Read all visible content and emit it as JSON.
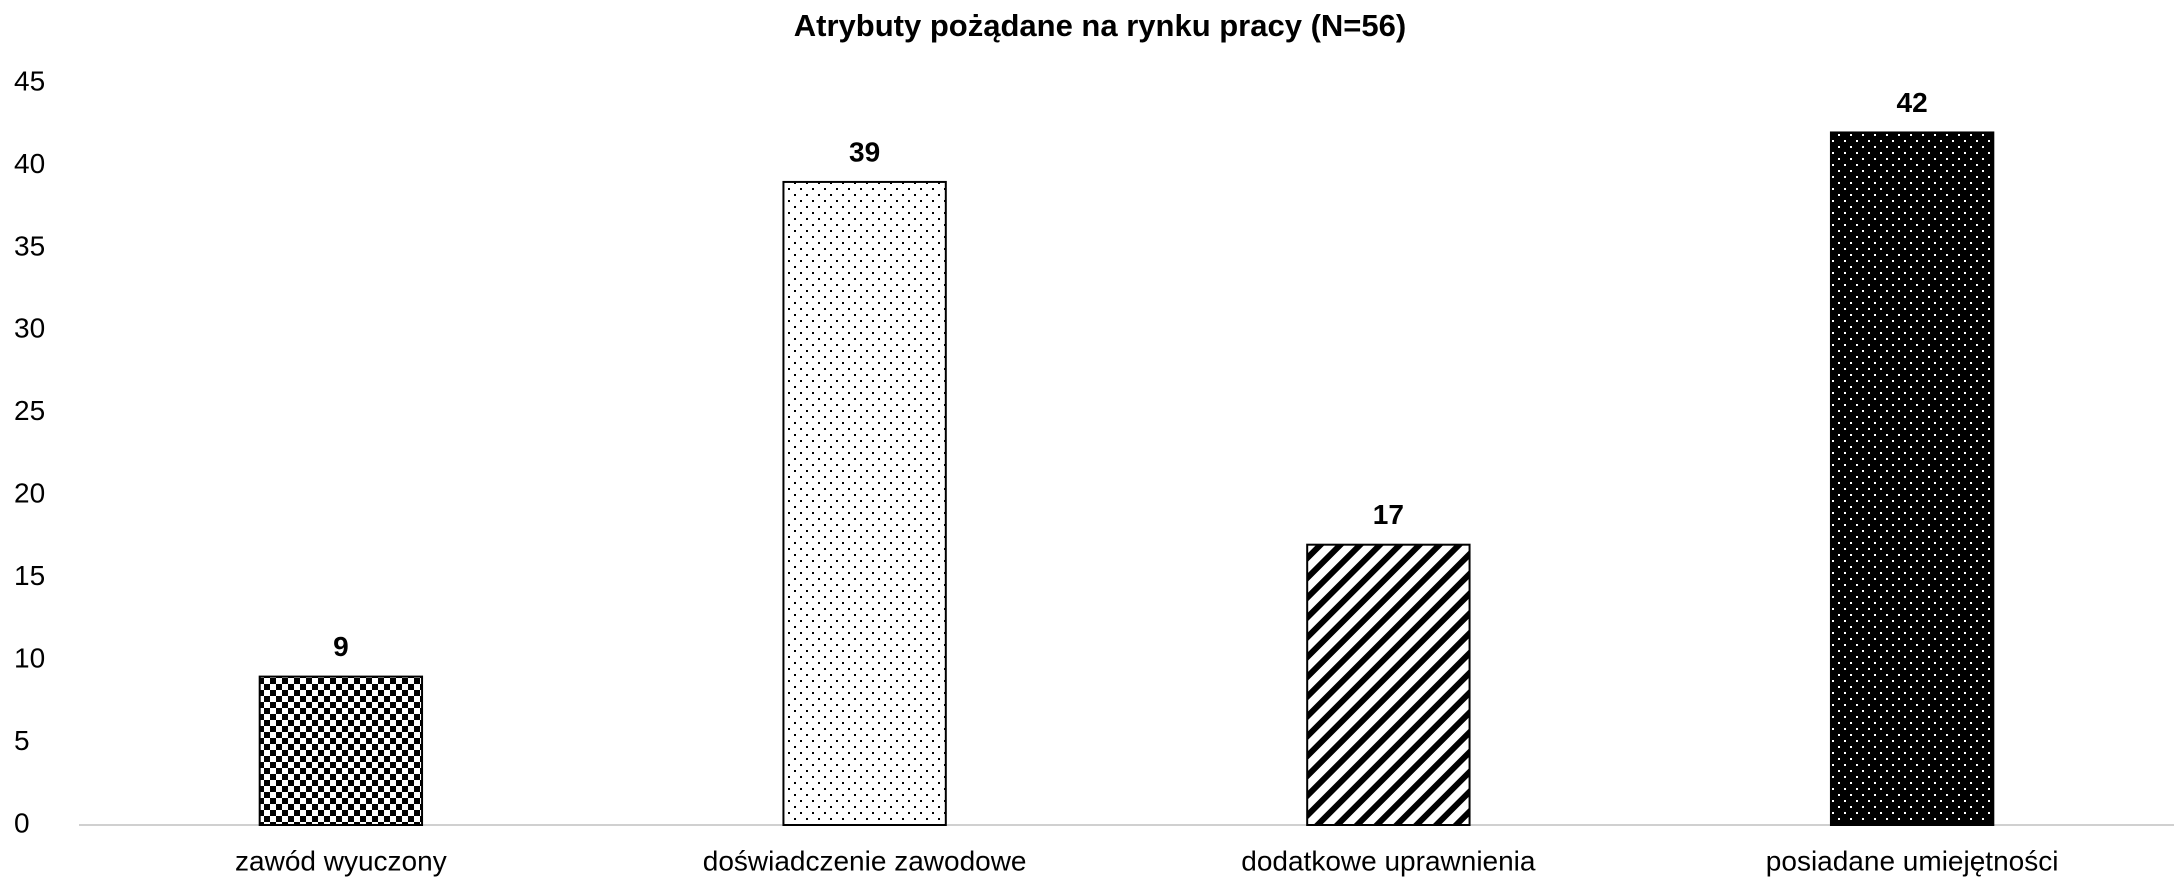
{
  "chart_data": {
    "type": "bar",
    "title": "Atrybuty pożądane na rynku pracy (N=56)",
    "categories": [
      "zawód wyuczony",
      "doświadczenie zawodowe",
      "dodatkowe uprawnienia",
      "posiadane umiejętności"
    ],
    "values": [
      9,
      39,
      17,
      42
    ],
    "patterns": [
      "checker",
      "sparse-dots",
      "diagonal-stripes",
      "dark-dots"
    ],
    "ylim": [
      0,
      45
    ],
    "yticks": [
      0,
      5,
      10,
      15,
      20,
      25,
      30,
      35,
      40,
      45
    ],
    "grid": false
  }
}
